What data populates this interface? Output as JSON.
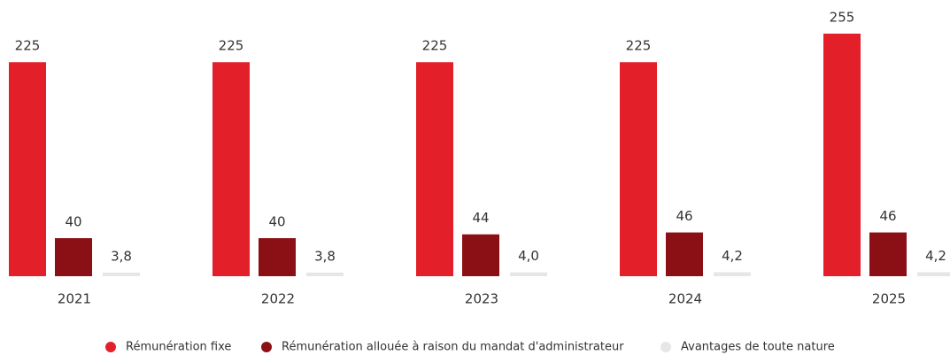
{
  "chart_data": {
    "type": "bar",
    "categories": [
      "2021",
      "2022",
      "2023",
      "2024",
      "2025"
    ],
    "series": [
      {
        "name": "Rémunération fixe",
        "color": "#e3202a",
        "values": [
          225,
          225,
          225,
          225,
          255
        ]
      },
      {
        "name": "Rémunération allouée à raison du mandat d'administrateur",
        "color": "#8b1016",
        "values": [
          40,
          40,
          44,
          46,
          46
        ]
      },
      {
        "name": "Avantages de toute nature",
        "color": "#e6e6e6",
        "values": [
          3.8,
          3.8,
          4.0,
          4.2,
          4.2
        ],
        "value_labels": [
          "3,8",
          "3,8",
          "4,0",
          "4,2",
          "4,2"
        ]
      }
    ],
    "legend": "bottom"
  }
}
